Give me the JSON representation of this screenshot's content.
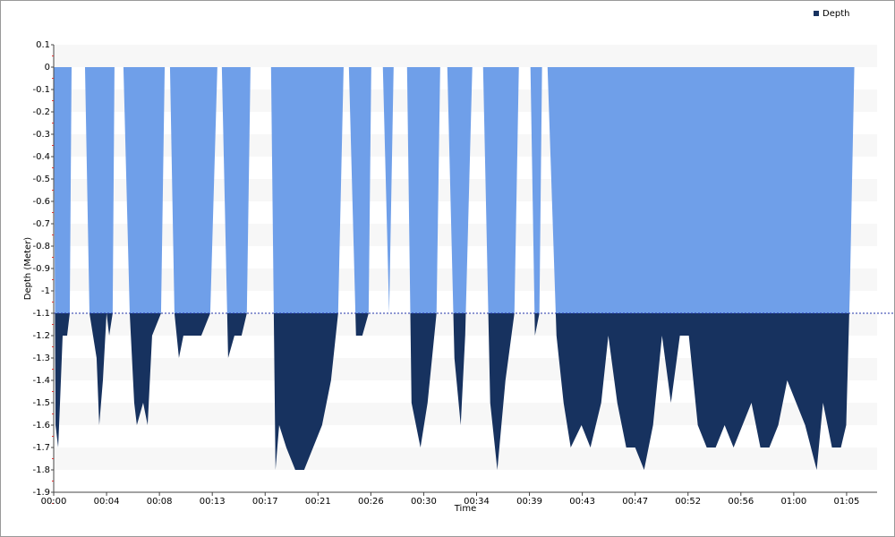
{
  "chart_data": {
    "type": "area",
    "x_label": "Time",
    "y_label": "Depth (Meter)",
    "series": [
      {
        "name": "Depth",
        "color": "#17325f",
        "x": [
          0,
          9,
          22,
          31,
          44,
          66,
          79,
          88,
          154,
          176,
          211,
          224,
          242,
          260,
          273,
          290,
          299,
          343,
          374,
          396,
          409,
          440,
          462,
          484,
          528,
          546,
          572,
          594,
          616,
          638,
          682,
          726,
          770,
          805,
          827,
          858,
          889,
          924,
          950,
          968,
          1069,
          1091,
          1109,
          1144,
          1188,
          1232,
          1276,
          1320,
          1364,
          1399,
          1426,
          1452,
          1487,
          1518,
          1549,
          1562,
          1619,
          1650,
          1672,
          1738,
          1760,
          1804,
          1839,
          1883,
          1901,
          1936,
          1971,
          2002,
          2024,
          2059,
          2112,
          2147,
          2182,
          2222,
          2266,
          2288,
          2345,
          2367,
          2389,
          2402,
          2429,
          2473,
          2508,
          2543,
          2596,
          2640,
          2693,
          2728,
          2772,
          2816,
          2860,
          2904,
          2948,
          2992,
          3036,
          3080,
          3124,
          3168,
          3212,
          3256,
          3300,
          3344,
          3388,
          3432,
          3476,
          3520,
          3564,
          3608,
          3652,
          3696,
          3753,
          3784,
          3828,
          3872,
          3898,
          3916,
          3938
        ],
        "values": [
          0,
          -1.6,
          -1.7,
          -1.5,
          -1.2,
          -1.2,
          -1.1,
          0,
          0,
          -1.1,
          -1.3,
          -1.6,
          -1.4,
          -1.1,
          -1.2,
          -1.1,
          0,
          0,
          -1.1,
          -1.5,
          -1.6,
          -1.5,
          -1.6,
          -1.2,
          -1.1,
          0,
          0,
          -1.1,
          -1.3,
          -1.2,
          -1.2,
          -1.2,
          -1.1,
          0,
          0,
          -1.3,
          -1.2,
          -1.2,
          -1.1,
          0,
          0,
          -1.8,
          -1.6,
          -1.7,
          -1.8,
          -1.8,
          -1.7,
          -1.6,
          -1.4,
          -1.1,
          0,
          0,
          -1.2,
          -1.2,
          -1.1,
          0,
          0,
          -1.1,
          0,
          0,
          -1.5,
          -1.7,
          -1.5,
          -1.1,
          0,
          0,
          -1.3,
          -1.6,
          -1.2,
          0,
          0,
          -1.5,
          -1.8,
          -1.4,
          -1.1,
          0,
          0,
          -1.2,
          -1.1,
          0,
          0,
          -1.2,
          -1.5,
          -1.7,
          -1.6,
          -1.7,
          -1.5,
          -1.2,
          -1.5,
          -1.7,
          -1.7,
          -1.8,
          -1.6,
          -1.2,
          -1.5,
          -1.2,
          -1.2,
          -1.6,
          -1.7,
          -1.7,
          -1.6,
          -1.7,
          -1.6,
          -1.5,
          -1.7,
          -1.7,
          -1.6,
          -1.4,
          -1.5,
          -1.6,
          -1.8,
          -1.5,
          -1.7,
          -1.7,
          -1.6,
          -1.0,
          0
        ]
      }
    ],
    "threshold": -1.1,
    "above_color": "#6f9fe9",
    "threshold_color": "#2233aa",
    "xlim": [
      0,
      4050
    ],
    "xticks": [
      {
        "value": 0,
        "label": "00:00"
      },
      {
        "value": 260,
        "label": "00:04"
      },
      {
        "value": 520,
        "label": "00:08"
      },
      {
        "value": 780,
        "label": "00:13"
      },
      {
        "value": 1040,
        "label": "00:17"
      },
      {
        "value": 1300,
        "label": "00:21"
      },
      {
        "value": 1560,
        "label": "00:26"
      },
      {
        "value": 1820,
        "label": "00:30"
      },
      {
        "value": 2080,
        "label": "00:34"
      },
      {
        "value": 2340,
        "label": "00:39"
      },
      {
        "value": 2600,
        "label": "00:43"
      },
      {
        "value": 2860,
        "label": "00:47"
      },
      {
        "value": 3120,
        "label": "00:52"
      },
      {
        "value": 3380,
        "label": "00:56"
      },
      {
        "value": 3640,
        "label": "01:00"
      },
      {
        "value": 3900,
        "label": "01:05"
      }
    ],
    "ylim": [
      -1.9,
      0.1
    ],
    "yticks": [
      0.1,
      0,
      -0.1,
      -0.2,
      -0.3,
      -0.4,
      -0.5,
      -0.6,
      -0.7,
      -0.8,
      -0.9,
      -1,
      -1.1,
      -1.2,
      -1.3,
      -1.4,
      -1.5,
      -1.6,
      -1.7,
      -1.8,
      -1.9
    ],
    "grid": true,
    "legend": "top-right"
  }
}
